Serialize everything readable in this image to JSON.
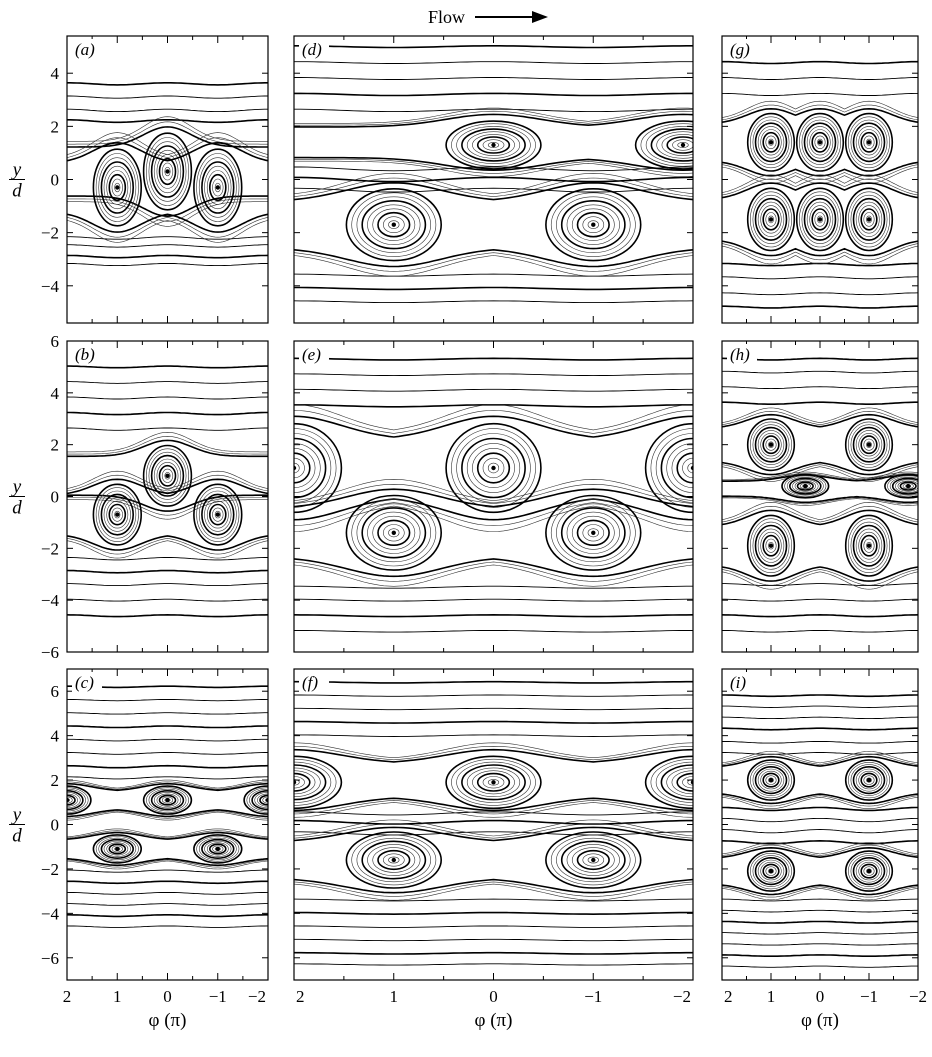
{
  "figure": {
    "flow_label": "Flow",
    "xlabel": "φ (π)",
    "ylabel_num": "y",
    "ylabel_den": "d",
    "x_ticks": [
      "2",
      "1",
      "0",
      "−1",
      "−2"
    ]
  },
  "rows": [
    {
      "ylim": [
        -5.4,
        5.4
      ],
      "y_ticks": [
        "4",
        "2",
        "0",
        "−2",
        "−4"
      ],
      "y_tick_values": [
        4,
        2,
        0,
        -2,
        -4
      ]
    },
    {
      "ylim": [
        -6,
        6
      ],
      "y_ticks": [
        "6",
        "4",
        "2",
        "0",
        "−2",
        "−4",
        "−6"
      ],
      "y_tick_values": [
        6,
        4,
        2,
        0,
        -2,
        -4,
        -6
      ]
    },
    {
      "ylim": [
        -7,
        7
      ],
      "y_ticks": [
        "6",
        "4",
        "2",
        "0",
        "−2",
        "−4",
        "−6"
      ],
      "y_tick_values": [
        6,
        4,
        2,
        0,
        -2,
        -4,
        -6
      ]
    }
  ],
  "chart_data": [
    {
      "type": "streamline",
      "panel": "(a)",
      "xlim": [
        2,
        -2
      ],
      "ylim": [
        -5.4,
        5.4
      ],
      "vortex_rows": [
        {
          "y_center": 0.3,
          "cores_phi": [
            0.0
          ],
          "half_height": 1.6,
          "core_y": 0.3
        },
        {
          "y_center": -0.3,
          "cores_phi": [
            1.0,
            -1.0
          ],
          "half_height": 1.6,
          "core_y": -0.3
        }
      ],
      "outer_streamlines_y": [
        3.6,
        3.1,
        2.6,
        2.2,
        -2.2,
        -2.5,
        -2.9,
        -3.2
      ]
    },
    {
      "type": "streamline",
      "panel": "(d)",
      "xlim": [
        2,
        -2
      ],
      "ylim": [
        -5.4,
        5.4
      ],
      "vortex_rows": [
        {
          "y_center": 1.4,
          "cores_phi": [
            0.0,
            -1.9
          ],
          "half_height": 1.0,
          "core_y": 1.3
        },
        {
          "y_center": -1.7,
          "cores_phi": [
            1.0,
            -1.0
          ],
          "half_height": 1.5,
          "core_y": -1.7
        }
      ],
      "outer_streamlines_y": [
        5.0,
        4.4,
        3.8,
        3.2,
        2.6,
        0.4,
        0.0,
        -0.4,
        -3.6,
        -4.1,
        -4.6
      ]
    },
    {
      "type": "streamline",
      "panel": "(g)",
      "xlim": [
        2,
        -2
      ],
      "ylim": [
        -5.4,
        5.4
      ],
      "vortex_rows": [
        {
          "y_center": 1.4,
          "cores_phi": [
            1.0,
            0.0,
            -1.0
          ],
          "half_height": 1.2,
          "core_y": 1.4
        },
        {
          "y_center": -1.5,
          "cores_phi": [
            1.0,
            0.0,
            -1.0
          ],
          "half_height": 1.3,
          "core_y": -1.5
        }
      ],
      "outer_streamlines_y": [
        4.4,
        3.8,
        3.2,
        -3.2,
        -3.7,
        -4.3,
        -4.8
      ]
    },
    {
      "type": "streamline",
      "panel": "(b)",
      "xlim": [
        2,
        -2
      ],
      "ylim": [
        -6,
        6
      ],
      "vortex_rows": [
        {
          "y_center": 0.8,
          "cores_phi": [
            0.0
          ],
          "half_height": 1.3,
          "core_y": 0.8
        },
        {
          "y_center": -0.7,
          "cores_phi": [
            1.0,
            -1.0
          ],
          "half_height": 1.3,
          "core_y": -0.7
        }
      ],
      "outer_streamlines_y": [
        5.0,
        4.4,
        3.8,
        3.2,
        2.6,
        -2.4,
        -2.9,
        -3.4,
        -4.0,
        -4.6
      ]
    },
    {
      "type": "streamline",
      "panel": "(e)",
      "xlim": [
        2,
        -2
      ],
      "ylim": [
        -6,
        6
      ],
      "vortex_rows": [
        {
          "y_center": 1.1,
          "cores_phi": [
            0.0,
            2.0,
            -2.0
          ],
          "half_height": 1.9,
          "core_y": 1.1
        },
        {
          "y_center": -1.4,
          "cores_phi": [
            1.0,
            -1.0
          ],
          "half_height": 1.6,
          "core_y": -1.4
        }
      ],
      "outer_streamlines_y": [
        5.3,
        4.7,
        4.1,
        3.5,
        -3.5,
        -4.0,
        -4.6,
        -5.2
      ]
    },
    {
      "type": "streamline",
      "panel": "(h)",
      "xlim": [
        2,
        -2
      ],
      "ylim": [
        -6,
        6
      ],
      "vortex_rows": [
        {
          "y_center": 2.0,
          "cores_phi": [
            1.0,
            -1.0
          ],
          "half_height": 1.1,
          "core_y": 2.0
        },
        {
          "y_center": 0.3,
          "cores_phi": [
            0.3,
            -1.8
          ],
          "half_height": 0.5,
          "core_y": 0.4
        },
        {
          "y_center": -1.9,
          "cores_phi": [
            1.0,
            -1.0
          ],
          "half_height": 1.3,
          "core_y": -1.9
        }
      ],
      "outer_streamlines_y": [
        5.3,
        4.8,
        4.2,
        3.6,
        -3.4,
        -4.0,
        -4.6,
        -5.2
      ]
    },
    {
      "type": "streamline",
      "panel": "(c)",
      "xlim": [
        2,
        -2
      ],
      "ylim": [
        -7,
        7
      ],
      "vortex_rows": [
        {
          "y_center": 1.1,
          "cores_phi": [
            2.0,
            0.0,
            -2.0
          ],
          "half_height": 0.7,
          "core_y": 1.1
        },
        {
          "y_center": -1.1,
          "cores_phi": [
            1.0,
            -1.0
          ],
          "half_height": 0.7,
          "core_y": -1.1
        }
      ],
      "outer_streamlines_y": [
        6.2,
        5.6,
        5.0,
        4.4,
        3.8,
        3.2,
        2.6,
        2.1,
        -2.1,
        -2.6,
        -3.1,
        -3.6,
        -4.1,
        -4.6
      ]
    },
    {
      "type": "streamline",
      "panel": "(f)",
      "xlim": [
        2,
        -2
      ],
      "ylim": [
        -7,
        7
      ],
      "vortex_rows": [
        {
          "y_center": 2.0,
          "cores_phi": [
            0.0,
            2.0,
            -2.0
          ],
          "half_height": 1.3,
          "core_y": 1.9
        },
        {
          "y_center": -1.6,
          "cores_phi": [
            1.0,
            -1.0
          ],
          "half_height": 1.4,
          "core_y": -1.6
        }
      ],
      "outer_streamlines_y": [
        6.4,
        5.8,
        5.2,
        4.6,
        4.0,
        0.5,
        0.1,
        -0.4,
        -3.4,
        -4.0,
        -4.6,
        -5.2,
        -5.8,
        -6.3
      ]
    },
    {
      "type": "streamline",
      "panel": "(i)",
      "xlim": [
        2,
        -2
      ],
      "ylim": [
        -7,
        7
      ],
      "vortex_rows": [
        {
          "y_center": 2.0,
          "cores_phi": [
            1.0,
            -1.0
          ],
          "half_height": 1.0,
          "core_y": 2.0
        },
        {
          "y_center": -2.1,
          "cores_phi": [
            1.0,
            -1.0
          ],
          "half_height": 1.0,
          "core_y": -2.1
        }
      ],
      "outer_streamlines_y": [
        5.8,
        5.3,
        4.8,
        4.3,
        3.7,
        3.2,
        0.7,
        0.2,
        -0.3,
        -0.8,
        -3.4,
        -3.9,
        -4.4,
        -4.9,
        -5.4,
        -5.9,
        -6.4
      ]
    }
  ]
}
